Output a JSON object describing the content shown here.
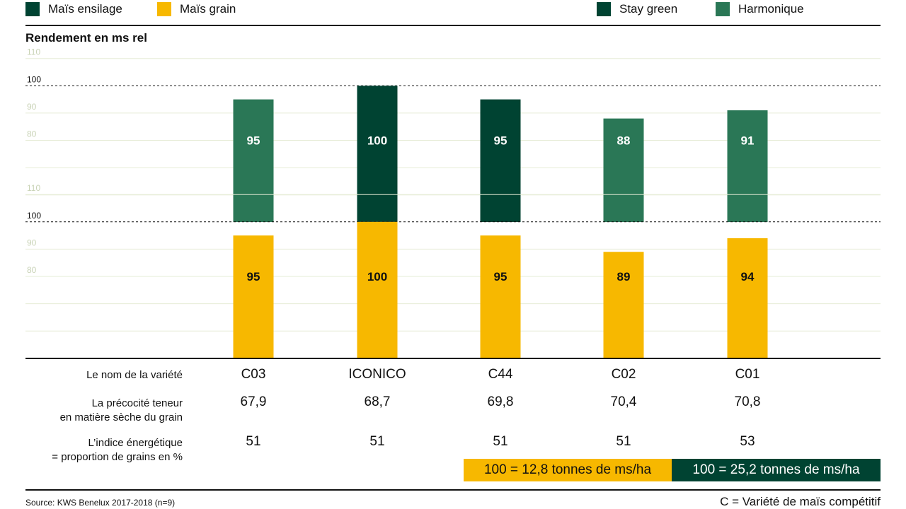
{
  "legend": {
    "left": [
      {
        "label": "Maïs ensilage",
        "color": "#004332"
      },
      {
        "label": "Maïs grain",
        "color": "#f7b800"
      }
    ],
    "right": [
      {
        "label": "Stay green",
        "color": "#004332"
      },
      {
        "label": "Harmonique",
        "color": "#2a7756"
      }
    ]
  },
  "chart_data": {
    "type": "bar",
    "ylabel": "Rendement en ms rel",
    "categories": [
      "C03",
      "ICONICO",
      "C44",
      "C02",
      "C01"
    ],
    "panels": [
      {
        "name": "Maïs ensilage",
        "values": [
          95,
          100,
          95,
          88,
          91
        ],
        "colors": [
          "#2a7756",
          "#004332",
          "#004332",
          "#2a7756",
          "#2a7756"
        ],
        "ticks": [
          80,
          90,
          100,
          110
        ],
        "reference": 100
      },
      {
        "name": "Maïs grain",
        "values": [
          95,
          100,
          95,
          89,
          94
        ],
        "colors": [
          "#f7b800",
          "#f7b800",
          "#f7b800",
          "#f7b800",
          "#f7b800"
        ],
        "ticks": [
          80,
          90,
          100,
          110
        ],
        "reference": 100
      }
    ],
    "grid": true
  },
  "table": {
    "rows": [
      {
        "label": [
          "Le nom de la variété"
        ],
        "values": [
          "C03",
          "ICONICO",
          "C44",
          "C02",
          "C01"
        ]
      },
      {
        "label": [
          "La précocité teneur",
          "en matière sèche du grain"
        ],
        "values": [
          "67,9",
          "68,7",
          "69,8",
          "70,4",
          "70,8"
        ]
      },
      {
        "label": [
          "L’indice énergétique",
          "= proportion de grains en %"
        ],
        "values": [
          "51",
          "51",
          "51",
          "51",
          "53"
        ]
      }
    ]
  },
  "notes": {
    "grain": {
      "text": "100 = 12,8 tonnes de ms/ha",
      "color": "#f7b800"
    },
    "ensilage": {
      "text": "100 = 25,2 tonnes de ms/ha",
      "color": "#004332"
    }
  },
  "source": "Source: KWS Benelux 2017-2018 (n=9)",
  "c_note": "C = Variété de maïs compétitif"
}
